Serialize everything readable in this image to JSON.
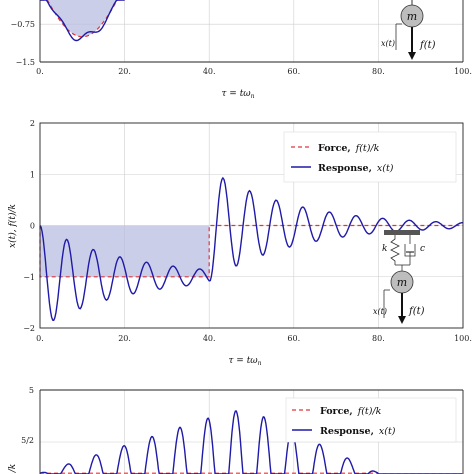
{
  "colors": {
    "force": "#e0353a",
    "response": "#1f1aa8",
    "shade": "#b9bde0",
    "mass_fill": "#bdbdbd"
  },
  "chart_data": [
    {
      "type": "line",
      "title": "",
      "xlabel": "τ = tω",
      "xlabel_sub": "n",
      "ylabel": "",
      "xlim": [
        0,
        100
      ],
      "ylim": [
        -1.5,
        0
      ],
      "x_ticks": [
        0,
        20,
        40,
        60,
        80,
        100
      ],
      "x_tick_labels": [
        "0.",
        "20.",
        "40.",
        "60.",
        "80.",
        "100."
      ],
      "y_ticks": [
        -0.75,
        -1.5
      ],
      "y_tick_labels": [
        "−0.75",
        "−1.5"
      ],
      "series": [
        {
          "name": "Force",
          "x": [
            0,
            5,
            10,
            15,
            20
          ],
          "y": [
            -0.05,
            -0.7,
            -1.0,
            -0.7,
            -0.05
          ]
        },
        {
          "name": "Response",
          "x": [
            0,
            3,
            6,
            9,
            12,
            15,
            18,
            20
          ],
          "y": [
            -0.05,
            -0.6,
            -0.85,
            -1.05,
            -0.9,
            -0.75,
            -0.2,
            -0.05
          ]
        }
      ],
      "inset_labels": {
        "mass": "m",
        "displacement": "x(t)",
        "force": "f(t)"
      }
    },
    {
      "type": "line",
      "title": "",
      "xlabel": "τ = tω",
      "xlabel_sub": "n",
      "ylabel": "x(t), f(t)/k",
      "xlim": [
        0,
        100
      ],
      "ylim": [
        -2,
        2
      ],
      "x_ticks": [
        0,
        20,
        40,
        60,
        80,
        100
      ],
      "x_tick_labels": [
        "0.",
        "20.",
        "40.",
        "60.",
        "80.",
        "100."
      ],
      "y_ticks": [
        -2,
        -1,
        0,
        1,
        2
      ],
      "y_tick_labels": [
        "−2",
        "−1",
        "0",
        "1",
        "2"
      ],
      "legend": {
        "location": "top-right",
        "entries": [
          {
            "bold": "Force,",
            "math": "f(t)/k"
          },
          {
            "bold": "Response,",
            "math": "x(t)"
          }
        ]
      },
      "series": [
        {
          "name": "Force",
          "x": [
            0,
            0.01,
            40,
            40.01,
            100
          ],
          "y": [
            0,
            -1,
            -1,
            0,
            0
          ]
        },
        {
          "name": "Response",
          "description_only": false,
          "x_step": 0.25,
          "x_end": 100,
          "model": {
            "on_until": 40,
            "zeta": 0.05
          }
        }
      ],
      "inset_labels": {
        "spring": "k",
        "damper": "c",
        "mass": "m",
        "displacement": "x(t)",
        "force": "f(t)"
      }
    },
    {
      "type": "line",
      "title": "",
      "xlabel": "",
      "ylabel": "/k",
      "xlim": [
        0,
        100
      ],
      "ylim_visible": [
        0,
        5
      ],
      "y_tick_labels_visible": [
        "5",
        "5/2"
      ],
      "legend": {
        "location": "top-right",
        "entries": [
          {
            "bold": "Force,",
            "math": "f(t)/k"
          },
          {
            "bold": "Response,",
            "math": "x(t)"
          }
        ]
      }
    }
  ]
}
